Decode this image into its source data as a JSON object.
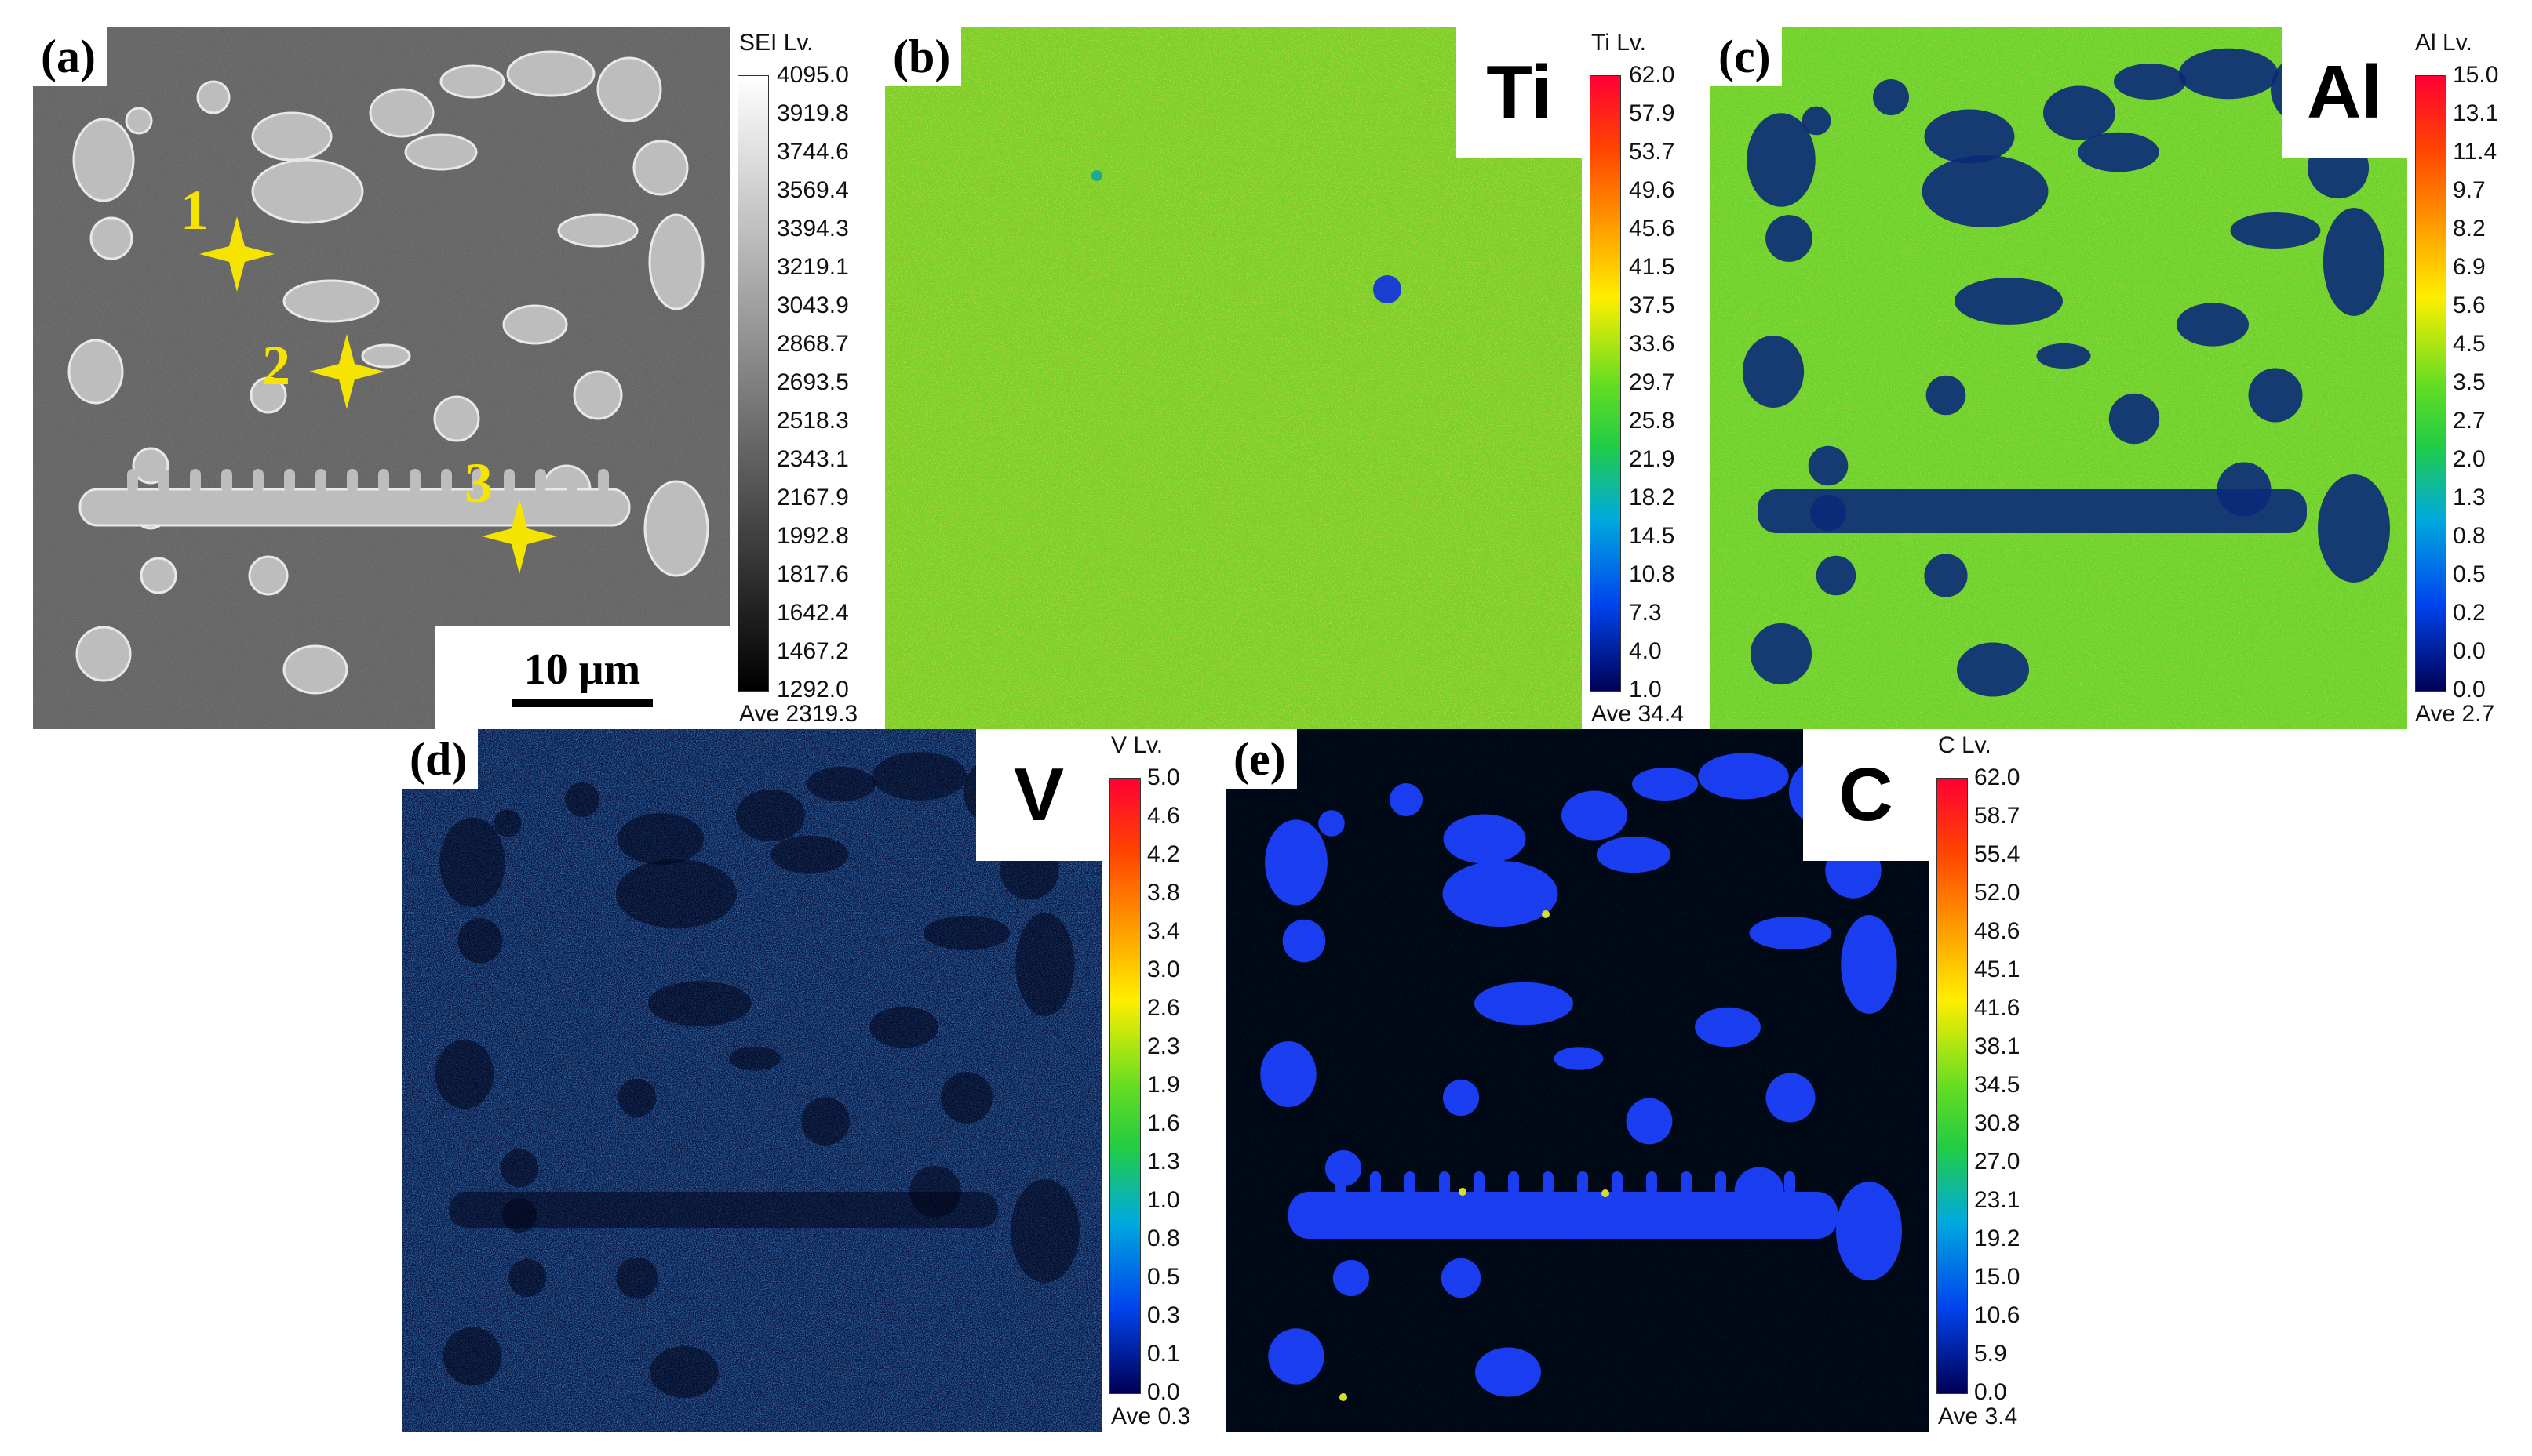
{
  "panels": {
    "a": {
      "tag": "(a)",
      "bar_title": "SEI  Lv.",
      "ticks": [
        "4095.0",
        "3919.8",
        "3744.6",
        "3569.4",
        "3394.3",
        "3219.1",
        "3043.9",
        "2868.7",
        "2693.5",
        "2518.3",
        "2343.1",
        "2167.9",
        "1992.8",
        "1817.6",
        "1642.4",
        "1467.2",
        "1292.0"
      ],
      "ave": "Ave 2319.3",
      "scale_bar": "10 μm",
      "markers": [
        "1",
        "2",
        "3"
      ]
    },
    "b": {
      "tag": "(b)",
      "element": "Ti",
      "bar_title": "Ti  Lv.",
      "ticks": [
        "62.0",
        "57.9",
        "53.7",
        "49.6",
        "45.6",
        "41.5",
        "37.5",
        "33.6",
        "29.7",
        "25.8",
        "21.9",
        "18.2",
        "14.5",
        "10.8",
        "7.3",
        "4.0",
        "1.0"
      ],
      "ave": "Ave 34.4"
    },
    "c": {
      "tag": "(c)",
      "element": "Al",
      "bar_title": "Al  Lv.",
      "ticks": [
        "15.0",
        "13.1",
        "11.4",
        "9.7",
        "8.2",
        "6.9",
        "5.6",
        "4.5",
        "3.5",
        "2.7",
        "2.0",
        "1.3",
        "0.8",
        "0.5",
        "0.2",
        "0.0",
        "0.0"
      ],
      "ave": "Ave 2.7"
    },
    "d": {
      "tag": "(d)",
      "element": "V",
      "bar_title": "V  Lv.",
      "ticks": [
        "5.0",
        "4.6",
        "4.2",
        "3.8",
        "3.4",
        "3.0",
        "2.6",
        "2.3",
        "1.9",
        "1.6",
        "1.3",
        "1.0",
        "0.8",
        "0.5",
        "0.3",
        "0.1",
        "0.0"
      ],
      "ave": "Ave 0.3"
    },
    "e": {
      "tag": "(e)",
      "element": "C",
      "bar_title": "C  Lv.",
      "ticks": [
        "62.0",
        "58.7",
        "55.4",
        "52.0",
        "48.6",
        "45.1",
        "41.6",
        "38.1",
        "34.5",
        "30.8",
        "27.0",
        "23.1",
        "19.2",
        "15.0",
        "10.6",
        "5.9",
        "0.0"
      ],
      "ave": "Ave 3.4"
    }
  },
  "colors": {
    "marker": "#f5e400",
    "sem_background": "#5a5a5a",
    "sem_particle": "#bdbdbd",
    "ti_base": "#7ccf2a",
    "al_base": "#6fd22e",
    "al_low": "#0a2a7a",
    "v_base": "#06123e",
    "c_base": "#000814",
    "c_particle": "#1a3df0"
  }
}
